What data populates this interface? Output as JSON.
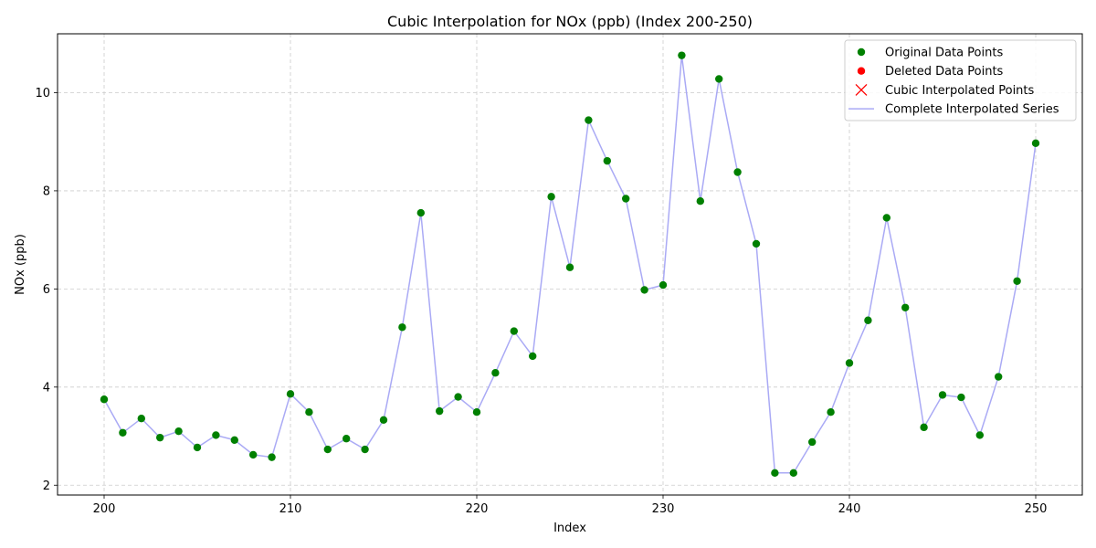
{
  "chart_data": {
    "type": "line",
    "title": "Cubic Interpolation for NOx (ppb) (Index 200-250)",
    "xlabel": "Index",
    "ylabel": "NOx (ppb)",
    "xlim": [
      197.5,
      252.5
    ],
    "ylim": [
      1.8,
      11.2
    ],
    "x_ticks": [
      200,
      210,
      220,
      230,
      240,
      250
    ],
    "y_ticks": [
      2,
      4,
      6,
      8,
      10
    ],
    "grid": true,
    "legend_position": "top-right",
    "legend": [
      {
        "label": "Original Data Points",
        "marker": "dot",
        "color": "#008000"
      },
      {
        "label": "Deleted Data Points",
        "marker": "dot",
        "color": "#ff0000"
      },
      {
        "label": "Cubic Interpolated Points",
        "marker": "x",
        "color": "#ff0000"
      },
      {
        "label": "Complete Interpolated Series",
        "marker": "line",
        "color": "#aaaaf5"
      }
    ],
    "x": [
      200,
      201,
      202,
      203,
      204,
      205,
      206,
      207,
      208,
      209,
      210,
      211,
      212,
      213,
      214,
      215,
      216,
      217,
      218,
      219,
      220,
      221,
      222,
      223,
      224,
      225,
      226,
      227,
      228,
      229,
      230,
      231,
      232,
      233,
      234,
      235,
      236,
      237,
      238,
      239,
      240,
      241,
      242,
      243,
      244,
      245,
      246,
      247,
      248,
      249,
      250
    ],
    "series": [
      {
        "name": "Original Data Points",
        "values": [
          3.75,
          3.07,
          3.36,
          2.97,
          3.1,
          2.77,
          3.02,
          2.92,
          2.62,
          2.57,
          3.86,
          3.49,
          2.73,
          2.95,
          2.73,
          3.33,
          5.22,
          7.55,
          3.51,
          3.8,
          3.49,
          4.29,
          5.14,
          4.63,
          7.88,
          6.44,
          9.44,
          8.61,
          7.84,
          5.98,
          6.08,
          10.76,
          7.79,
          10.28,
          8.38,
          6.92,
          2.25,
          2.25,
          2.88,
          3.49,
          4.49,
          5.36,
          7.45,
          5.62,
          3.18,
          3.84,
          3.79,
          3.02,
          4.21,
          6.16,
          8.97
        ]
      }
    ],
    "colors": {
      "original": "#008000",
      "deleted": "#ff0000",
      "interpolated_marker": "#ff0000",
      "series_line": "#aaaaf5",
      "grid": "#cccccc"
    }
  }
}
